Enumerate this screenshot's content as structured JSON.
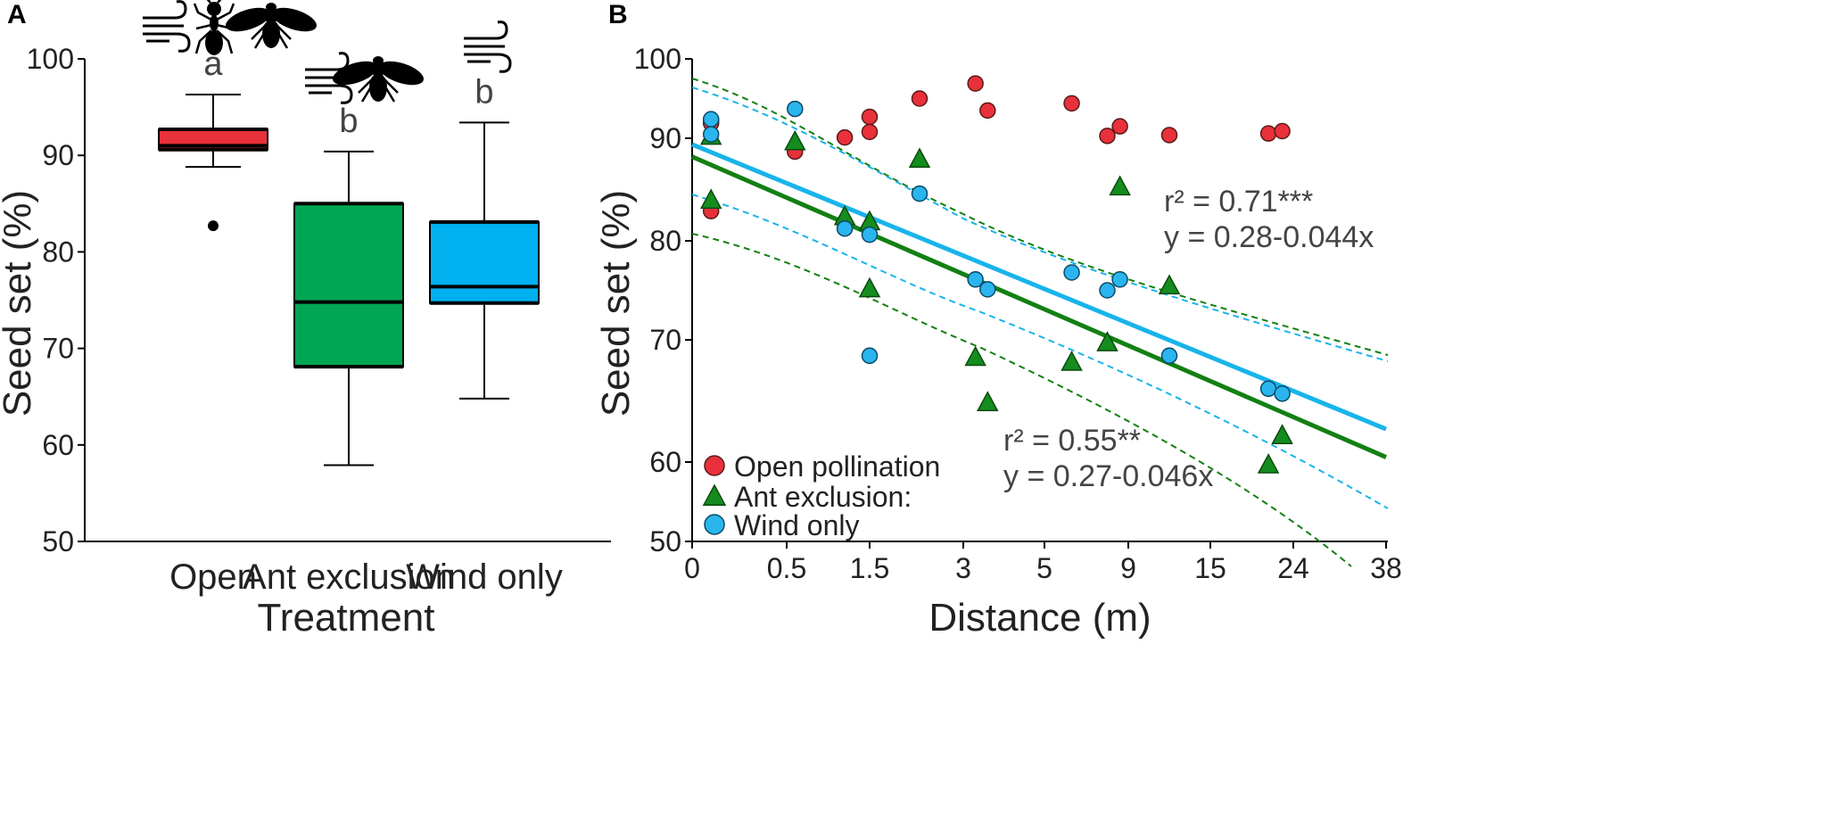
{
  "figure": {
    "panels": [
      "A",
      "B"
    ]
  },
  "colors": {
    "open": "#e8313a",
    "open_dark": "#cc1f2a",
    "ant": "#00a651",
    "ant_marker": "#148c1e",
    "ant_line": "#138013",
    "wind": "#00b0ef",
    "wind_marker": "#2bb5ee",
    "wind_line": "#18b4ea"
  },
  "icons": [
    "wind-icon",
    "ant-icon",
    "bee-icon"
  ],
  "chart_data": [
    {
      "panel": "A",
      "type": "box",
      "title": "",
      "xlabel": "Treatment",
      "ylabel": "Seed set (%)",
      "ylim": [
        50,
        100
      ],
      "yticks": [
        50,
        60,
        70,
        80,
        90,
        100
      ],
      "categories": [
        "Open",
        "Ant exclusion",
        "Wind only"
      ],
      "boxes": [
        {
          "category": "Open",
          "whisker_low": 88.8,
          "q1": 90.6,
          "median": 91.0,
          "q3": 92.7,
          "whisker_high": 96.3,
          "outliers": [
            82.7
          ],
          "sig_letter": "a",
          "pollinators": [
            "wind",
            "ant",
            "bee"
          ]
        },
        {
          "category": "Ant exclusion",
          "whisker_low": 57.9,
          "q1": 68.1,
          "median": 74.8,
          "q3": 85.0,
          "whisker_high": 90.4,
          "outliers": [],
          "sig_letter": "b",
          "pollinators": [
            "wind",
            "bee"
          ]
        },
        {
          "category": "Wind only",
          "whisker_low": 64.8,
          "q1": 74.7,
          "median": 76.4,
          "q3": 83.1,
          "whisker_high": 93.4,
          "outliers": [],
          "sig_letter": "b",
          "pollinators": [
            "wind"
          ]
        }
      ]
    },
    {
      "panel": "B",
      "type": "scatter",
      "title": "",
      "xlabel": "Distance (m)",
      "ylabel": "Seed set (%)",
      "xticks": [
        "0",
        "0.5",
        "1.5",
        "3",
        "5",
        "9",
        "15",
        "24",
        "38"
      ],
      "x_scale": "transformed (tick values as labelled)",
      "yticks": [
        50,
        60,
        70,
        80,
        90,
        100
      ],
      "y_scale": "transformed (tick values as labelled)",
      "legend": {
        "position": "bottom-left",
        "entries": [
          "Open pollination",
          "Ant exclusion:",
          "Wind only"
        ]
      },
      "series": [
        {
          "name": "Open pollination",
          "marker": "circle",
          "points": [
            [
              0.1,
              92.2
            ],
            [
              0.1,
              91.9
            ],
            [
              0.1,
              82.9
            ],
            [
              0.6,
              88.7
            ],
            [
              1.2,
              90.1
            ],
            [
              1.5,
              92.7
            ],
            [
              1.5,
              90.8
            ],
            [
              2.3,
              95.0
            ],
            [
              3.3,
              96.9
            ],
            [
              3.6,
              93.5
            ],
            [
              6.3,
              94.4
            ],
            [
              8.0,
              90.3
            ],
            [
              8.6,
              91.5
            ],
            [
              12.0,
              90.4
            ],
            [
              21.3,
              90.6
            ],
            [
              22.8,
              90.9
            ]
          ]
        },
        {
          "name": "Ant exclusion:",
          "marker": "triangle",
          "points": [
            [
              0.1,
              90.3
            ],
            [
              0.1,
              84.0
            ],
            [
              0.6,
              89.7
            ],
            [
              1.2,
              82.4
            ],
            [
              1.5,
              81.9
            ],
            [
              1.5,
              75.2
            ],
            [
              2.3,
              88.0
            ],
            [
              3.3,
              68.6
            ],
            [
              3.6,
              64.9
            ],
            [
              6.3,
              68.2
            ],
            [
              8.0,
              69.8
            ],
            [
              8.6,
              85.3
            ],
            [
              12.0,
              75.5
            ],
            [
              21.3,
              59.7
            ],
            [
              22.8,
              62.2
            ]
          ]
        },
        {
          "name": "Wind only",
          "marker": "circle",
          "points": [
            [
              0.1,
              92.4
            ],
            [
              0.1,
              90.5
            ],
            [
              0.6,
              93.7
            ],
            [
              1.2,
              81.2
            ],
            [
              1.5,
              80.6
            ],
            [
              1.5,
              68.7
            ],
            [
              2.3,
              84.6
            ],
            [
              3.3,
              76.1
            ],
            [
              3.6,
              75.1
            ],
            [
              6.3,
              76.8
            ],
            [
              8.0,
              75.0
            ],
            [
              8.6,
              76.1
            ],
            [
              12.0,
              68.7
            ],
            [
              21.3,
              66.0
            ],
            [
              22.8,
              65.6
            ]
          ]
        }
      ],
      "fits": [
        {
          "series": "Wind only",
          "r2_label": "r² = 0.71***",
          "equation_label": "y = 0.28-0.044x",
          "line_from": [
            0,
            89.4
          ],
          "line_to": [
            38,
            62.7
          ]
        },
        {
          "series": "Ant exclusion:",
          "r2_label": "r² = 0.55**",
          "equation_label": "y = 0.27-0.046x",
          "line_from": [
            0,
            88.2
          ],
          "line_to": [
            38,
            60.4
          ]
        }
      ]
    }
  ]
}
